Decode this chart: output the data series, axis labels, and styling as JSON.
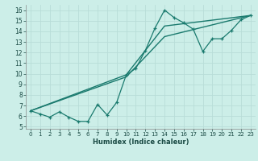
{
  "title": "",
  "xlabel": "Humidex (Indice chaleur)",
  "ylabel": "",
  "bg_color": "#cceee8",
  "grid_color": "#b8ddd8",
  "line_color": "#1a7a6e",
  "xlim": [
    -0.5,
    23.5
  ],
  "ylim": [
    4.8,
    16.5
  ],
  "xticks": [
    0,
    1,
    2,
    3,
    4,
    5,
    6,
    7,
    8,
    9,
    10,
    11,
    12,
    13,
    14,
    15,
    16,
    17,
    18,
    19,
    20,
    21,
    22,
    23
  ],
  "yticks": [
    5,
    6,
    7,
    8,
    9,
    10,
    11,
    12,
    13,
    14,
    15,
    16
  ],
  "line1_x": [
    0,
    1,
    2,
    3,
    4,
    5,
    6,
    7,
    8,
    9,
    10,
    11,
    12,
    13,
    14,
    15,
    16,
    17,
    18,
    19,
    20,
    21,
    22,
    23
  ],
  "line1_y": [
    6.5,
    6.2,
    5.9,
    6.4,
    5.9,
    5.5,
    5.5,
    7.1,
    6.1,
    7.3,
    9.9,
    10.5,
    12.2,
    14.3,
    16.0,
    15.3,
    14.8,
    14.2,
    12.1,
    13.3,
    13.3,
    14.1,
    15.1,
    15.5
  ],
  "line2_x": [
    0,
    10,
    14,
    23
  ],
  "line2_y": [
    6.5,
    9.7,
    13.5,
    15.5
  ],
  "line3_x": [
    0,
    10,
    14,
    23
  ],
  "line3_y": [
    6.5,
    9.9,
    14.5,
    15.5
  ]
}
